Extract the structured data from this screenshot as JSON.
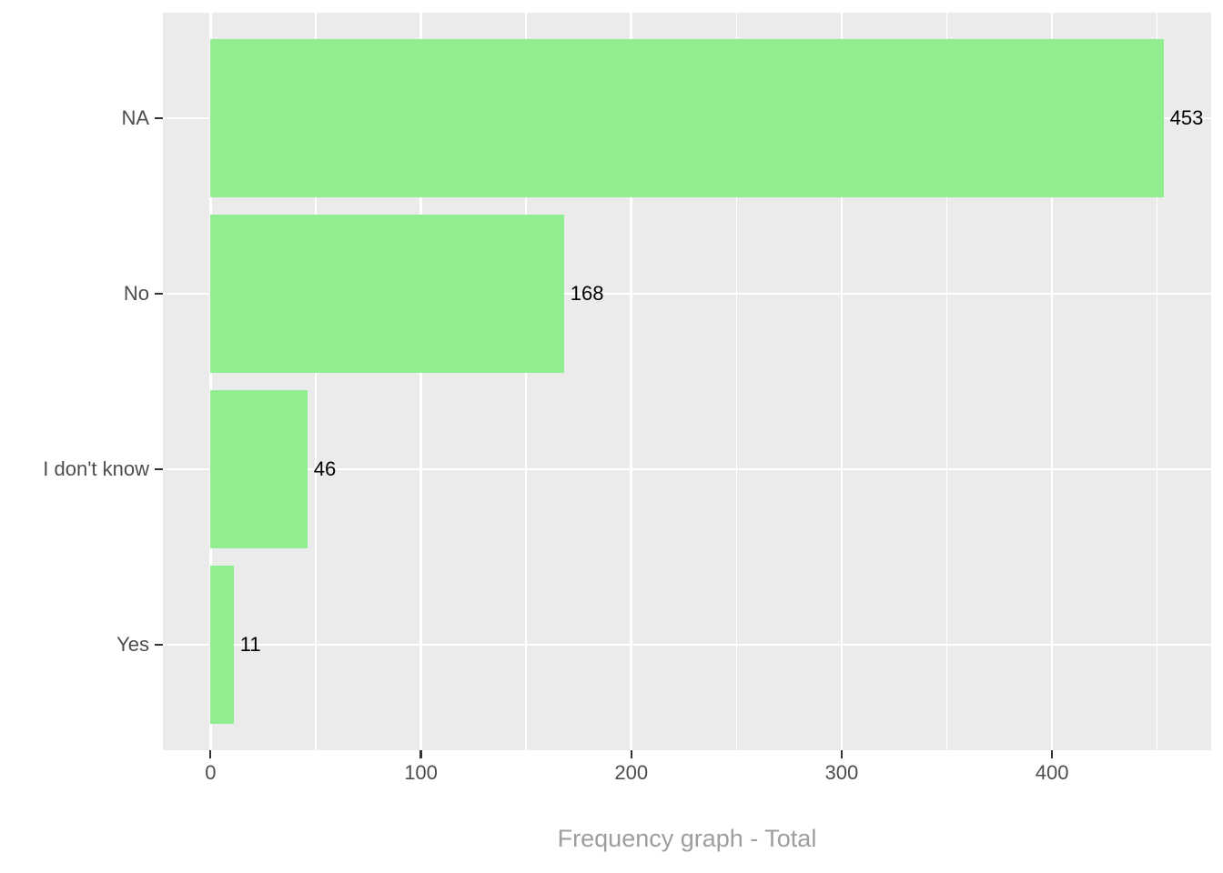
{
  "chart_data": {
    "type": "bar",
    "orientation": "horizontal",
    "title": "",
    "xlabel": "Frequency graph - Total",
    "ylabel": "",
    "categories": [
      "NA",
      "No",
      "I don't know",
      "Yes"
    ],
    "values": [
      453,
      168,
      46,
      11
    ],
    "value_labels": [
      "453",
      "168",
      "46",
      "11"
    ],
    "x_ticks": [
      0,
      100,
      200,
      300,
      400
    ],
    "x_minor_gridlines": [
      50,
      150,
      250,
      350,
      450
    ],
    "xlim": [
      -22.65,
      475.65
    ],
    "grid": "on",
    "legend_position": "none",
    "bar_color": "#90EE90",
    "panel_bg": "#EBEBEB",
    "grid_color": "#FFFFFF",
    "axis_text_color": "#4D4D4D",
    "tick_color": "#333333",
    "value_label_color": "#000000",
    "title_color": "#9E9E9E"
  }
}
